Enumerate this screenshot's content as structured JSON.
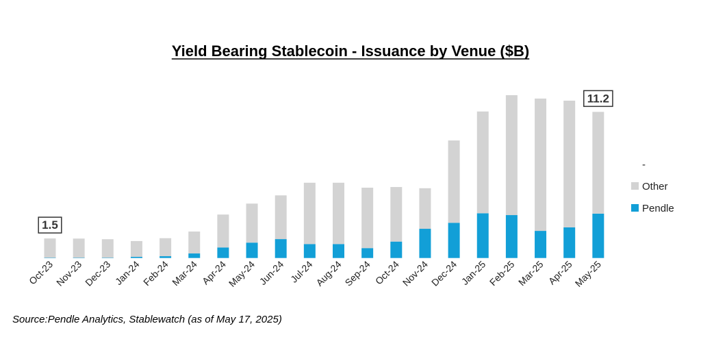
{
  "chart_data": {
    "type": "bar",
    "stacked": true,
    "title": "Yield Bearing Stablecoin - Issuance by Venue ($B)",
    "xlabel": "",
    "ylabel": "",
    "ylim": [
      0,
      13
    ],
    "grid": false,
    "legend_position": "right",
    "categories": [
      "Oct-23",
      "Nov-23",
      "Dec-23",
      "Jan-24",
      "Feb-24",
      "Mar-24",
      "Apr-24",
      "May-24",
      "Jun-24",
      "Jul-24",
      "Aug-24",
      "Sep-24",
      "Oct-24",
      "Nov-24",
      "Dec-24",
      "Jan-25",
      "Feb-25",
      "Mar-25",
      "Apr-25",
      "May-25"
    ],
    "series": [
      {
        "name": "Pendle",
        "color": "#129fd7",
        "values": [
          0.02,
          0.02,
          0.02,
          0.09,
          0.14,
          0.35,
          0.81,
          1.18,
          1.45,
          1.07,
          1.07,
          0.76,
          1.26,
          2.24,
          2.7,
          3.43,
          3.29,
          2.08,
          2.35,
          3.4
        ]
      },
      {
        "name": "Other",
        "color": "#d3d3d3",
        "values": [
          1.48,
          1.47,
          1.42,
          1.21,
          1.38,
          1.68,
          2.52,
          2.99,
          3.35,
          4.7,
          4.7,
          4.63,
          4.18,
          3.11,
          6.31,
          7.8,
          9.19,
          10.14,
          9.71,
          7.8
        ]
      }
    ],
    "legend_entries": [
      "-",
      "Other",
      "Pendle"
    ],
    "annotations": [
      {
        "category": "Oct-23",
        "text": "1.5"
      },
      {
        "category": "May-25",
        "text": "11.2"
      }
    ]
  },
  "source": "Source:Pendle Analytics, Stablewatch (as of May 17, 2025)"
}
